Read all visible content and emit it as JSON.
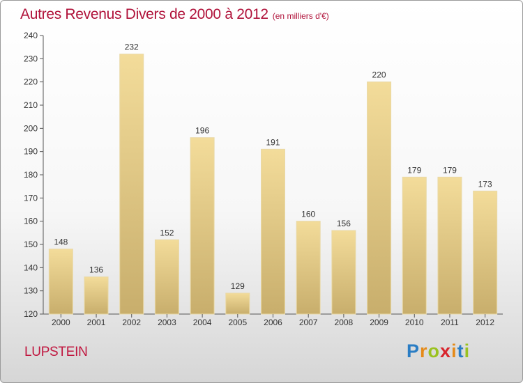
{
  "title": "Autres Revenus Divers de 2000 à 2012",
  "subtitle": "(en milliers d'€)",
  "place": "LUPSTEIN",
  "logo": {
    "letters": [
      "P",
      "r",
      "o",
      "x",
      "i",
      "t",
      "i"
    ],
    "colors": [
      "#2a7dc4",
      "#e58a18",
      "#9ac220",
      "#d8242c",
      "#e58a18",
      "#2a7dc4",
      "#9ac220"
    ]
  },
  "colors": {
    "title": "#b0123a",
    "bar_light": "#f3dc9a",
    "bar_dark": "#c8ae6c"
  },
  "chart_data": {
    "type": "bar",
    "title": "Autres Revenus Divers de 2000 à 2012",
    "subtitle": "(en milliers d'€)",
    "categories": [
      "2000",
      "2001",
      "2002",
      "2003",
      "2004",
      "2005",
      "2006",
      "2007",
      "2008",
      "2009",
      "2010",
      "2011",
      "2012"
    ],
    "values": [
      148,
      136,
      232,
      152,
      196,
      129,
      191,
      160,
      156,
      220,
      179,
      179,
      173
    ],
    "ylim": [
      120,
      240
    ],
    "yticks": [
      120,
      130,
      140,
      150,
      160,
      170,
      180,
      190,
      200,
      210,
      220,
      230,
      240
    ],
    "grid": false,
    "legend": "none"
  }
}
